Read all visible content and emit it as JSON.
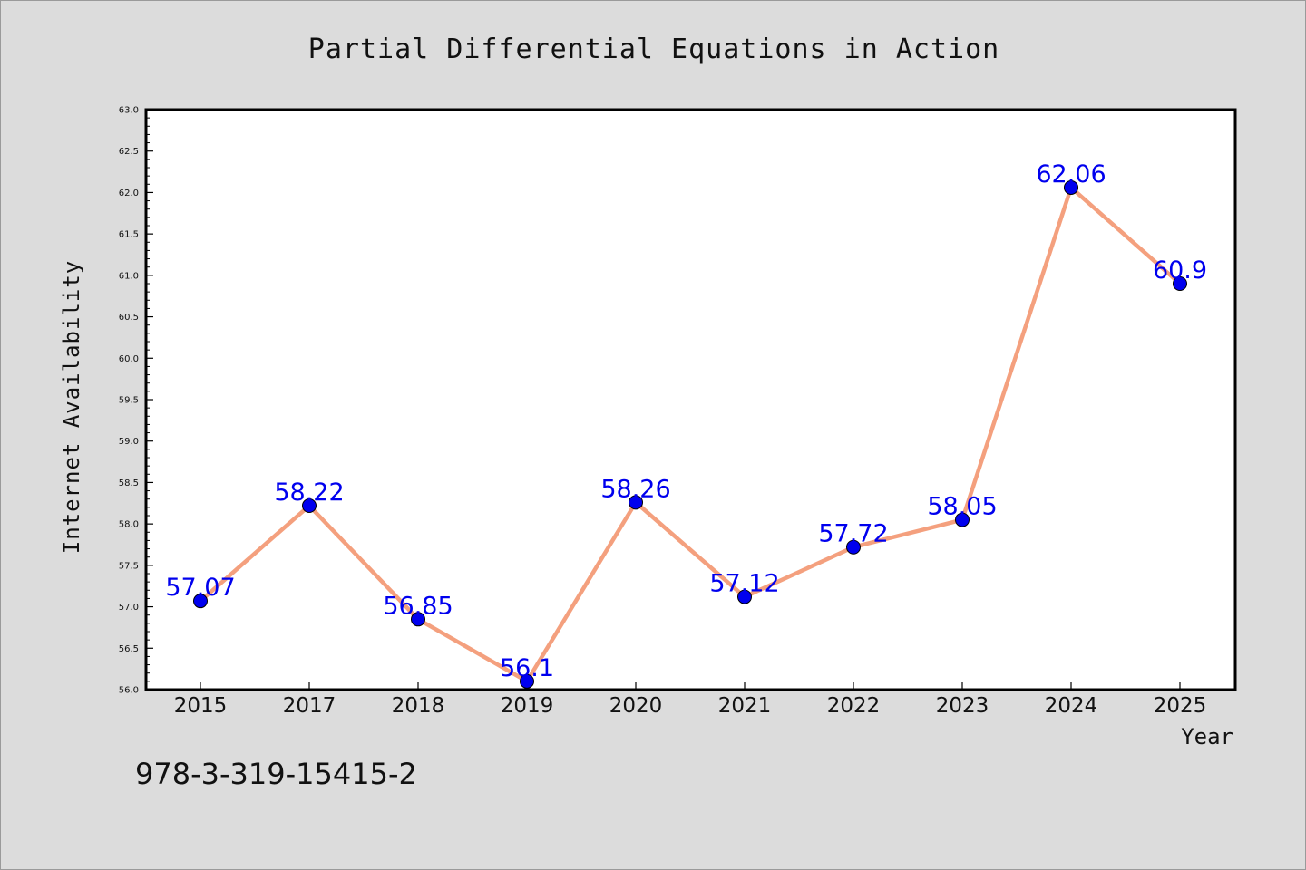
{
  "chart_data": {
    "type": "line",
    "title": "Partial Differential Equations in Action",
    "xlabel": "Year",
    "ylabel": "Internet Availability",
    "categories": [
      "2015",
      "2017",
      "2018",
      "2019",
      "2020",
      "2021",
      "2022",
      "2023",
      "2024",
      "2025"
    ],
    "series": [
      {
        "values": [
          57.07,
          58.22,
          56.85,
          56.1,
          58.26,
          57.12,
          57.72,
          58.05,
          62.06,
          60.9
        ],
        "labels": [
          "57.07",
          "58.22",
          "56.85",
          "56.1",
          "58.26",
          "57.12",
          "57.72",
          "58.05",
          "62.06",
          "60.9"
        ],
        "line_color": "#f4a07e",
        "marker_color": "#0000ee",
        "label_color": "#0000ee"
      }
    ],
    "ylim": [
      56.0,
      63.0
    ],
    "yticks": [
      "56.0",
      "56.5",
      "57.0",
      "57.5",
      "58.0",
      "58.5",
      "59.0",
      "59.5",
      "60.0",
      "60.5",
      "61.0",
      "61.5",
      "62.0",
      "62.5",
      "63.0"
    ],
    "grid": false,
    "legend": "none"
  },
  "footer_text": "978-3-319-15415-2",
  "colors": {
    "background": "#dcdcdc",
    "plot_background": "#ffffff",
    "axis": "#000000",
    "text": "#111111"
  }
}
